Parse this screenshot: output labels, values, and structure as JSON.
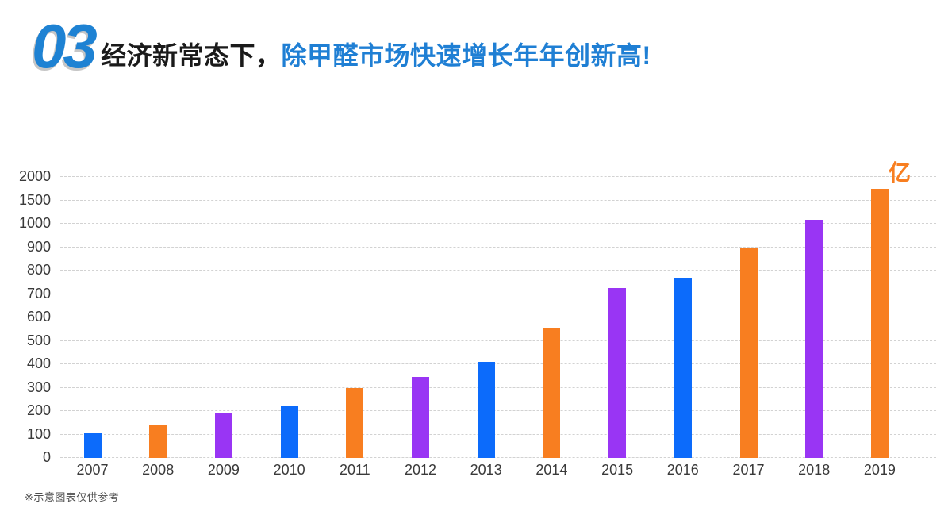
{
  "header": {
    "number": "03",
    "title_black": "经济新常态下，",
    "title_blue": "除甲醛市场快速增长年年创新高!"
  },
  "footnote": "※示意图表仅供参考",
  "colors": {
    "header_number_blue": "#1E82D3",
    "title_black": "#1A1A1A",
    "title_blue": "#1F7FD4",
    "axis_text": "#3A3A3A",
    "gridline": "#D2D2D2",
    "unit_orange": "#F87E20"
  },
  "chart_data": {
    "type": "bar",
    "title": "",
    "unit_label": "亿",
    "categories": [
      "2007",
      "2008",
      "2009",
      "2010",
      "2011",
      "2012",
      "2013",
      "2014",
      "2015",
      "2016",
      "2017",
      "2018",
      "2019"
    ],
    "values": [
      105,
      140,
      195,
      220,
      300,
      345,
      410,
      555,
      725,
      770,
      900,
      1080,
      1750
    ],
    "bar_color_keys": [
      "blue",
      "orange",
      "purple",
      "blue",
      "orange",
      "purple",
      "blue",
      "orange",
      "purple",
      "blue",
      "orange",
      "purple",
      "orange"
    ],
    "palette": {
      "blue": "#0C6BFB",
      "orange": "#F87E20",
      "purple": "#9935F4"
    },
    "y_ticks": [
      0,
      100,
      200,
      300,
      400,
      500,
      600,
      700,
      800,
      900,
      1000,
      1500,
      2000
    ],
    "axis_note": "non-linear axis: equal spacing per tick",
    "grid": "dashed horizontal",
    "legend": "none",
    "xlabel": "",
    "ylabel": ""
  }
}
